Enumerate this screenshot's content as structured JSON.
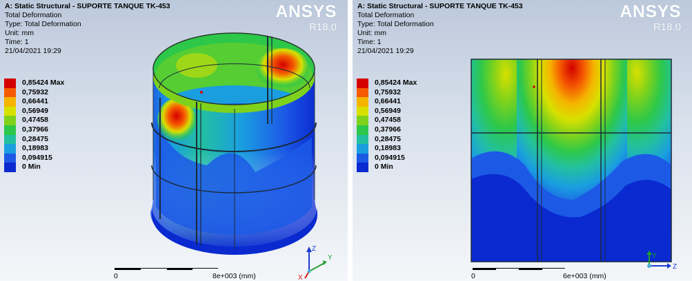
{
  "left": {
    "title": "A: Static Structural - SUPORTE TANQUE TK-453",
    "result": "Total Deformation",
    "type": "Type: Total Deformation",
    "unit": "Unit: mm",
    "time": "Time: 1",
    "date": "21/04/2021 19:29",
    "logo": "ANSYS",
    "version": "R18.0",
    "scale_zero": "0",
    "scale_max": "8e+003 (mm)",
    "axis_z": "Z",
    "axis_y": "Y",
    "axis_x": "X"
  },
  "right": {
    "title": "A: Static Structural - SUPORTE TANQUE TK-453",
    "result": "Total Deformation",
    "type": "Type: Total Deformation",
    "unit": "Unit: mm",
    "time": "Time: 1",
    "date": "21/04/2021 19:29",
    "logo": "ANSYS",
    "version": "R18.0",
    "scale_zero": "0",
    "scale_max": "6e+003 (mm)",
    "axis_y": "Y",
    "axis_z": "Z"
  },
  "legend": [
    {
      "label": "0,85424 Max",
      "color": "#d40000"
    },
    {
      "label": "0,75932",
      "color": "#f55a00"
    },
    {
      "label": "0,66441",
      "color": "#f5b400"
    },
    {
      "label": "0,56949",
      "color": "#d8e000"
    },
    {
      "label": "0,47458",
      "color": "#7fd21c"
    },
    {
      "label": "0,37966",
      "color": "#2dc84a"
    },
    {
      "label": "0,28475",
      "color": "#23c0a0"
    },
    {
      "label": "0,18983",
      "color": "#1a9ee0"
    },
    {
      "label": "0,094915",
      "color": "#1c5ae6"
    },
    {
      "label": "0 Min",
      "color": "#0a2ad0"
    }
  ]
}
